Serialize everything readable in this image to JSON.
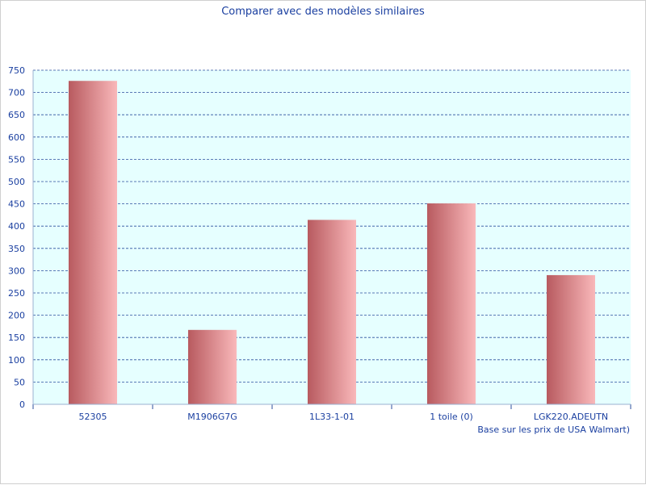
{
  "chart_data": {
    "type": "bar",
    "title": "Comparer avec des modèles similaires",
    "note": "Base sur les prix de USA Walmart)",
    "categories": [
      "52305",
      "M1906G7G",
      "1L33-1-01",
      "1 toile (0)",
      "LGK220.ADEUTN"
    ],
    "values": [
      726,
      167,
      414,
      451,
      290
    ],
    "ylim": [
      0,
      750
    ],
    "yticks": [
      0,
      50,
      100,
      150,
      200,
      250,
      300,
      350,
      400,
      450,
      500,
      550,
      600,
      650,
      700,
      750
    ],
    "grid": true,
    "colors": {
      "text": "#1a3fa0",
      "plot_bg": "#e6ffff",
      "grid": "#2b4f9e",
      "axis": "#9bb0d0",
      "bar_dark": "#b85a5f",
      "bar_light": "#f9b8ba"
    }
  }
}
